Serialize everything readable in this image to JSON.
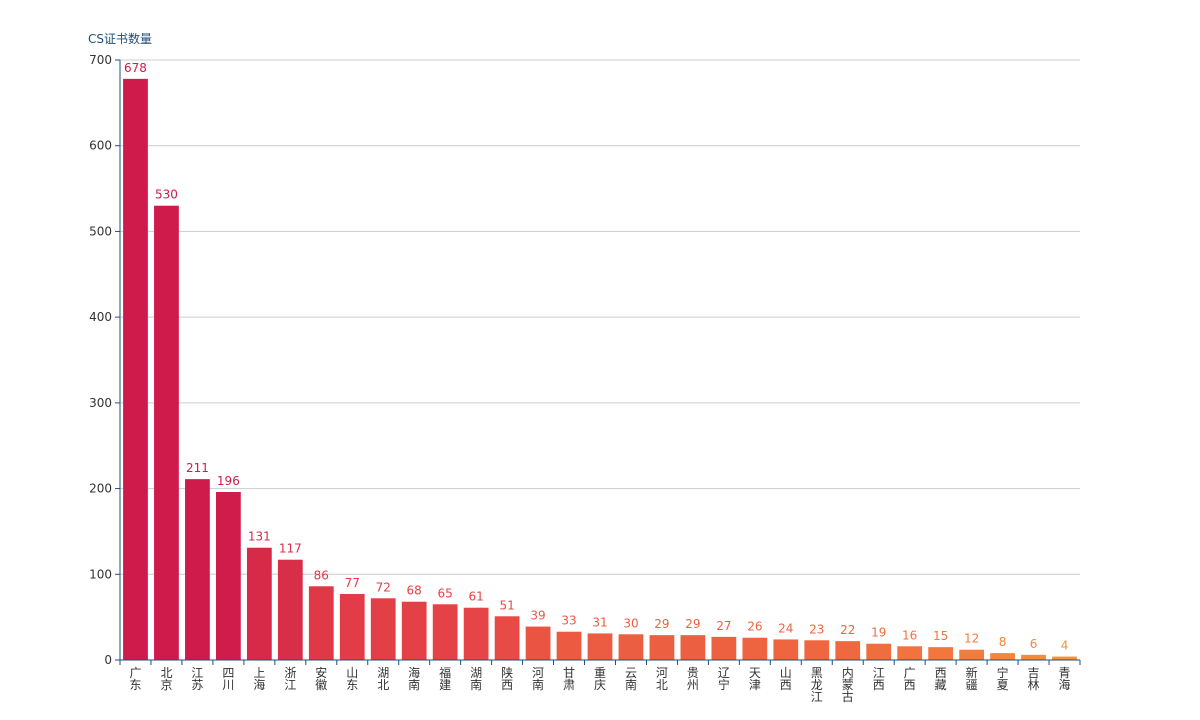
{
  "chart_data": {
    "type": "bar",
    "title": "",
    "xlabel": "",
    "ylabel": "CS证书数量",
    "ylim": [
      0,
      700
    ],
    "yticks": [
      0,
      100,
      200,
      300,
      400,
      500,
      600,
      700
    ],
    "grid": true,
    "legend": "none",
    "categories": [
      "广东",
      "北京",
      "江苏",
      "四川",
      "上海",
      "浙江",
      "安徽",
      "山东",
      "湖北",
      "海南",
      "福建",
      "湖南",
      "陕西",
      "河南",
      "甘肃",
      "重庆",
      "云南",
      "河北",
      "贵州",
      "辽宁",
      "天津",
      "山西",
      "黑龙江",
      "内蒙古",
      "江西",
      "广西",
      "西藏",
      "新疆",
      "宁夏",
      "吉林",
      "青海"
    ],
    "values": [
      678,
      530,
      211,
      196,
      131,
      117,
      86,
      77,
      72,
      68,
      65,
      61,
      51,
      39,
      33,
      31,
      30,
      29,
      29,
      27,
      26,
      24,
      23,
      22,
      19,
      16,
      15,
      12,
      8,
      6,
      4
    ],
    "color_scale": [
      "#cf1b4b",
      "#e84a45",
      "#f37a3c",
      "#f59a35",
      "#f7b52c"
    ]
  }
}
